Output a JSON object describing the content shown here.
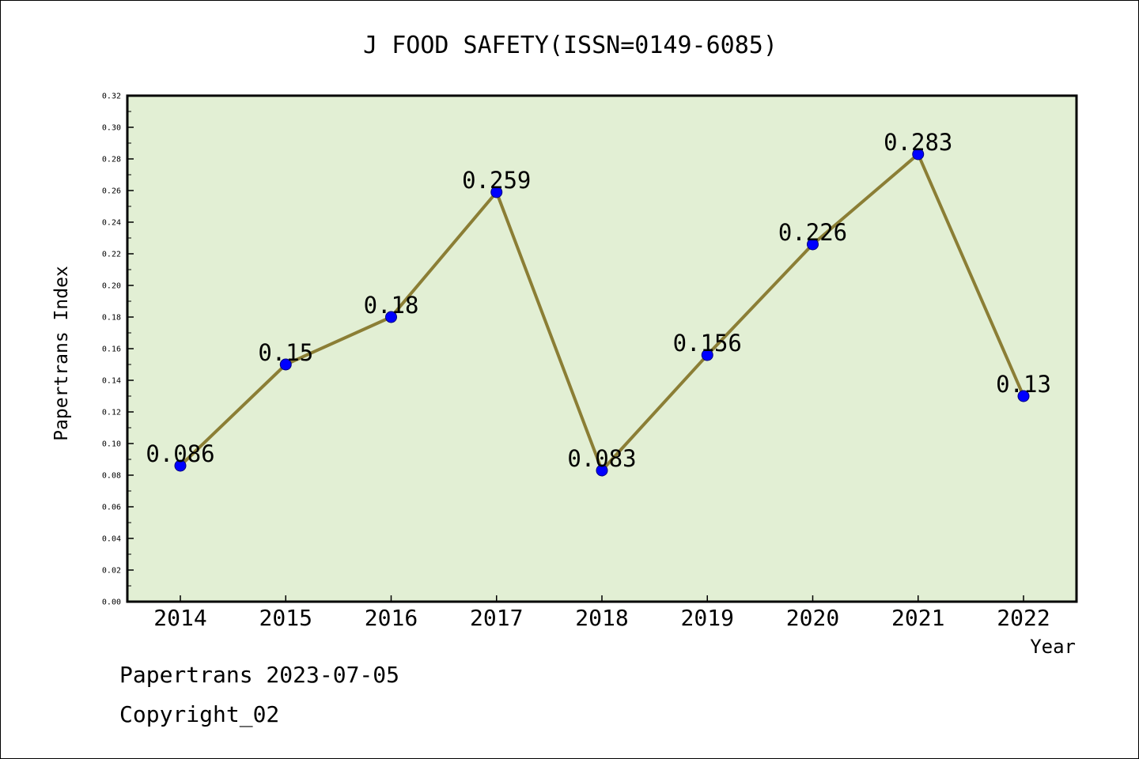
{
  "chart_data": {
    "type": "line",
    "title": "J FOOD SAFETY(ISSN=0149-6085)",
    "xlabel": "Year",
    "ylabel": "Papertrans Index",
    "x": [
      "2014",
      "2015",
      "2016",
      "2017",
      "2018",
      "2019",
      "2020",
      "2021",
      "2022"
    ],
    "series": [
      {
        "values": [
          0.086,
          0.15,
          0.18,
          0.259,
          0.083,
          0.156,
          0.226,
          0.283,
          0.13
        ],
        "data_labels": [
          "0.086",
          "0.15",
          "0.18",
          "0.259",
          "0.083",
          "0.156",
          "0.226",
          "0.283",
          "0.13"
        ]
      }
    ],
    "ylim": [
      0,
      0.32
    ],
    "y_ticks": [
      "0.00",
      "0.02",
      "0.04",
      "0.06",
      "0.08",
      "0.10",
      "0.12",
      "0.14",
      "0.16",
      "0.18",
      "0.20",
      "0.22",
      "0.24",
      "0.26",
      "0.28",
      "0.30",
      "0.32"
    ],
    "grid": false,
    "legend": "none",
    "colors": {
      "plot_background": "#e2efd4",
      "line": "#8b7e35",
      "marker": "#0000ff",
      "axes": "#000000"
    }
  },
  "footer": {
    "source": "Papertrans 2023-07-05",
    "copyright": "Copyright_02"
  }
}
